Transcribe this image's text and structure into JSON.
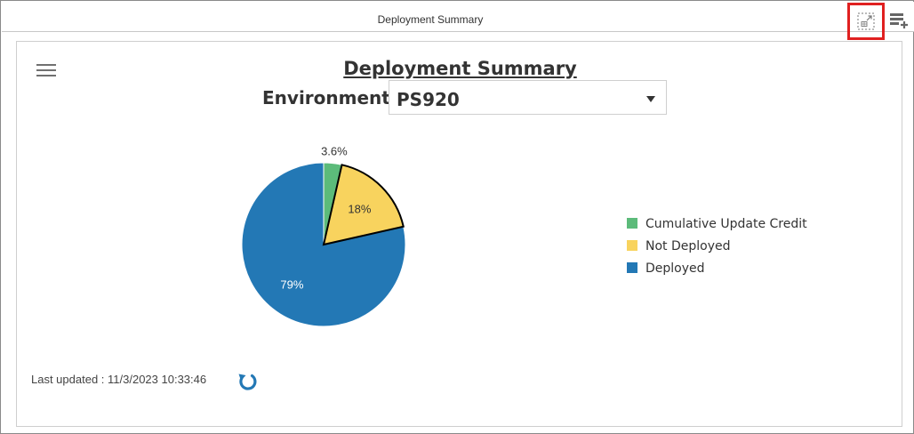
{
  "window": {
    "title": "Deployment Summary",
    "icons": {
      "expand": "expand-tile-icon",
      "add": "add-tile-icon"
    },
    "highlight_color": "#e02020"
  },
  "panel": {
    "title": "Deployment Summary",
    "menu_icon": "hamburger-menu-icon",
    "environment": {
      "label": "Environment",
      "selected": "PS920"
    },
    "last_updated": "Last updated : 11/3/2023 10:33:46",
    "refresh_icon": "refresh-icon"
  },
  "chart_data": {
    "type": "pie",
    "title": "",
    "slices": [
      {
        "name": "Cumulative Update Credit",
        "value": 3.6,
        "label": "3.6%",
        "color": "#5cbb7a"
      },
      {
        "name": "Not Deployed",
        "value": 18,
        "label": "18%",
        "color": "#f8d35e"
      },
      {
        "name": "Deployed",
        "value": 79,
        "label": "79%",
        "color": "#2378b5"
      }
    ],
    "highlighted_slice": "Not Deployed",
    "legend_position": "right"
  }
}
